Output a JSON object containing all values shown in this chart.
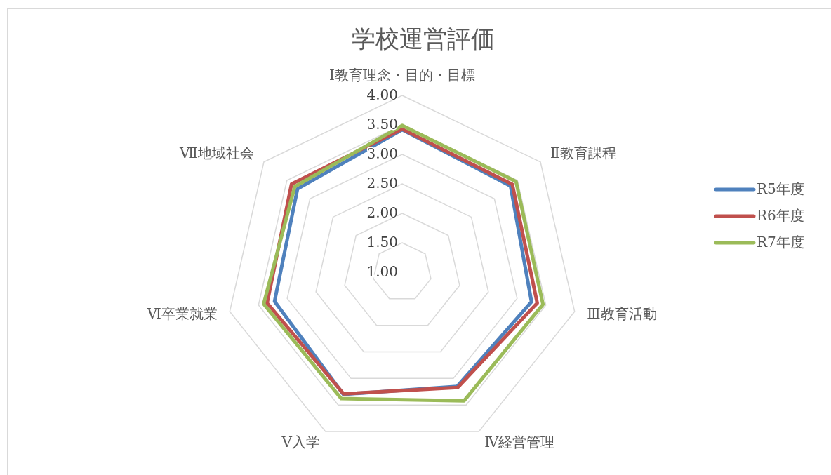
{
  "chart_data": {
    "type": "radar",
    "title": "学校運営評価",
    "categories": [
      "Ⅰ教育理念・目的・目標",
      "Ⅱ教育課程",
      "Ⅲ教育活動",
      "Ⅳ経営管理",
      "Ⅴ入学",
      "Ⅵ卒業就業",
      "Ⅶ地域社会"
    ],
    "series": [
      {
        "name": "R5年度",
        "color": "#4f81bd",
        "values": [
          3.42,
          3.35,
          3.25,
          3.15,
          3.3,
          3.22,
          3.27
        ]
      },
      {
        "name": "R6年度",
        "color": "#c0504d",
        "values": [
          3.43,
          3.39,
          3.35,
          3.17,
          3.29,
          3.35,
          3.4
        ]
      },
      {
        "name": "R7年度",
        "color": "#9bbb59",
        "values": [
          3.49,
          3.47,
          3.45,
          3.42,
          3.38,
          3.41,
          3.33
        ]
      }
    ],
    "ylim": [
      1,
      4
    ],
    "yticks": [
      {
        "value": 1,
        "label": "1.00"
      },
      {
        "value": 1.5,
        "label": "1.50"
      },
      {
        "value": 2,
        "label": "2.00"
      },
      {
        "value": 2.5,
        "label": "2.50"
      },
      {
        "value": 3,
        "label": "3.00"
      },
      {
        "value": 3.5,
        "label": "3.50"
      },
      {
        "value": 4,
        "label": "4.00"
      }
    ],
    "grid": true,
    "legend": "right"
  }
}
